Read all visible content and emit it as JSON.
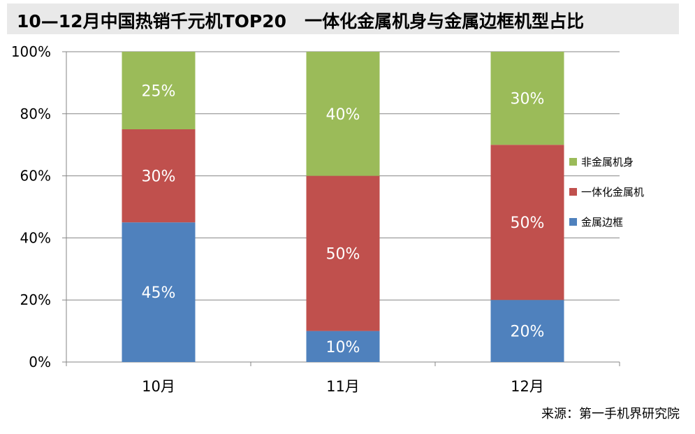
{
  "title": "10—12月中国热销千元机TOP20   一体化金属机身与金属边框机型占比",
  "source": "来源：第一手机界研究院",
  "chart_data": {
    "type": "bar",
    "stacked": true,
    "categories": [
      "10月",
      "11月",
      "12月"
    ],
    "series": [
      {
        "name": "金属边框",
        "values": [
          45,
          10,
          20
        ],
        "color": "#4f81bd"
      },
      {
        "name": "一体化金属机",
        "values": [
          30,
          50,
          50
        ],
        "color": "#c0504d"
      },
      {
        "name": "非金属机身",
        "values": [
          25,
          40,
          30
        ],
        "color": "#9bbb59"
      }
    ],
    "data_labels": [
      [
        "45%",
        "30%",
        "25%"
      ],
      [
        "10%",
        "50%",
        "40%"
      ],
      [
        "20%",
        "50%",
        "30%"
      ]
    ],
    "yticks": [
      "0%",
      "20%",
      "40%",
      "60%",
      "80%",
      "100%"
    ],
    "ylim": [
      0,
      100
    ],
    "grid": true,
    "legend_position": "right",
    "legend_order": [
      "非金属机身",
      "一体化金属机",
      "金属边框"
    ]
  }
}
